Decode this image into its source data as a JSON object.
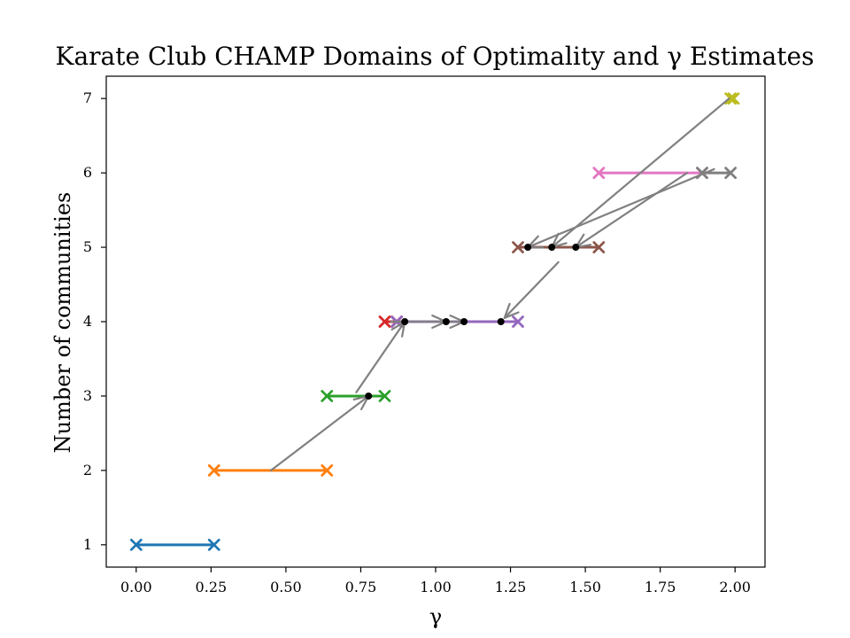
{
  "chart_data": {
    "type": "line",
    "title": "Karate Club CHAMP Domains of Optimality and γ Estimates",
    "xlabel": "γ",
    "ylabel": "Number of communities",
    "xlim": [
      -0.1,
      2.1
    ],
    "ylim": [
      0.7,
      7.3
    ],
    "grid": false,
    "x_ticks": [
      0.0,
      0.25,
      0.5,
      0.75,
      1.0,
      1.25,
      1.5,
      1.75,
      2.0
    ],
    "x_tick_labels": [
      "0.00",
      "0.25",
      "0.50",
      "0.75",
      "1.00",
      "1.25",
      "1.50",
      "1.75",
      "2.00"
    ],
    "y_ticks": [
      1,
      2,
      3,
      4,
      5,
      6,
      7
    ],
    "y_tick_labels": [
      "1",
      "2",
      "3",
      "4",
      "5",
      "6",
      "7"
    ],
    "domains": [
      {
        "x_start": 0.0,
        "x_end": 0.26,
        "y": 1,
        "color": "#1f77b4"
      },
      {
        "x_start": 0.26,
        "x_end": 0.637,
        "y": 2,
        "color": "#ff7f0e"
      },
      {
        "x_start": 0.637,
        "x_end": 0.83,
        "y": 3,
        "color": "#2ca02c"
      },
      {
        "x_start": 0.83,
        "x_end": 0.87,
        "y": 4,
        "color": "#d62728"
      },
      {
        "x_start": 0.87,
        "x_end": 1.275,
        "y": 4,
        "color": "#9467bd"
      },
      {
        "x_start": 1.275,
        "x_end": 1.545,
        "y": 5,
        "color": "#8c564b"
      },
      {
        "x_start": 1.545,
        "x_end": 1.89,
        "y": 6,
        "color": "#e377c2"
      },
      {
        "x_start": 1.89,
        "x_end": 1.985,
        "y": 6,
        "color": "#7f7f7f"
      },
      {
        "x_start": 1.985,
        "x_end": 1.995,
        "y": 7,
        "color": "#bcbd22"
      }
    ],
    "estimates": [
      {
        "x": 0.776,
        "y": 3
      },
      {
        "x": 0.897,
        "y": 4
      },
      {
        "x": 1.035,
        "y": 4
      },
      {
        "x": 1.095,
        "y": 4
      },
      {
        "x": 1.218,
        "y": 4
      },
      {
        "x": 1.308,
        "y": 5
      },
      {
        "x": 1.388,
        "y": 5
      },
      {
        "x": 1.468,
        "y": 5
      }
    ],
    "arrows": [
      {
        "from": [
          0.45,
          2
        ],
        "to": [
          0.776,
          3
        ]
      },
      {
        "from": [
          0.735,
          3.05
        ],
        "to": [
          0.897,
          4
        ]
      },
      {
        "from": [
          0.85,
          4
        ],
        "to": [
          1.035,
          4
        ]
      },
      {
        "from": [
          0.98,
          4
        ],
        "to": [
          1.095,
          4
        ]
      },
      {
        "from": [
          1.41,
          4.8
        ],
        "to": [
          1.23,
          4.05
        ]
      },
      {
        "from": [
          1.93,
          6.05
        ],
        "to": [
          1.308,
          5
        ]
      },
      {
        "from": [
          1.84,
          6.0
        ],
        "to": [
          1.468,
          5
        ]
      },
      {
        "from": [
          1.98,
          7.0
        ],
        "to": [
          1.388,
          5
        ]
      }
    ]
  }
}
